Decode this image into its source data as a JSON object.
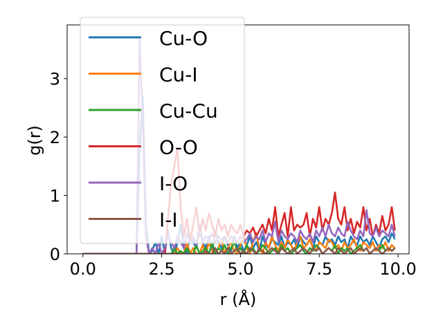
{
  "chart_data": {
    "type": "line",
    "title": "",
    "xlabel": "r (Å)",
    "ylabel": "g(r)",
    "xlim": [
      -0.5,
      10.35
    ],
    "ylim": [
      0,
      3.92
    ],
    "xticks": [
      0.0,
      2.5,
      5.0,
      7.5,
      10.0
    ],
    "xtick_labels": [
      "0.0",
      "2.5",
      "5.0",
      "7.5",
      "10.0"
    ],
    "yticks": [
      0,
      1,
      2,
      3
    ],
    "ytick_labels": [
      "0",
      "1",
      "2",
      "3"
    ],
    "grid": false,
    "legend_position": "upper-left",
    "x": [
      0.0,
      0.1,
      0.2,
      0.3,
      0.4,
      0.5,
      0.6,
      0.7,
      0.8,
      0.9,
      1.0,
      1.1,
      1.2,
      1.3,
      1.4,
      1.5,
      1.6,
      1.7,
      1.8,
      1.9,
      2.0,
      2.1,
      2.2,
      2.3,
      2.4,
      2.5,
      2.6,
      2.7,
      2.8,
      2.9,
      3.0,
      3.1,
      3.2,
      3.3,
      3.4,
      3.5,
      3.6,
      3.7,
      3.8,
      3.9,
      4.0,
      4.1,
      4.2,
      4.3,
      4.4,
      4.5,
      4.6,
      4.7,
      4.8,
      4.9,
      5.0,
      5.1,
      5.2,
      5.3,
      5.4,
      5.5,
      5.6,
      5.7,
      5.8,
      5.9,
      6.0,
      6.1,
      6.2,
      6.3,
      6.4,
      6.5,
      6.6,
      6.7,
      6.8,
      6.9,
      7.0,
      7.1,
      7.2,
      7.3,
      7.4,
      7.5,
      7.6,
      7.7,
      7.8,
      7.9,
      8.0,
      8.1,
      8.2,
      8.3,
      8.4,
      8.5,
      8.6,
      8.7,
      8.8,
      8.9,
      9.0,
      9.1,
      9.2,
      9.3,
      9.4,
      9.5,
      9.6,
      9.7,
      9.8,
      9.9
    ],
    "series": [
      {
        "name": "Cu-O",
        "color": "#1f77b4",
        "values": [
          0,
          0,
          0,
          0,
          0,
          0,
          0,
          0,
          0,
          0,
          0,
          0,
          0,
          0,
          0,
          0,
          0,
          0,
          1.8,
          2.7,
          0.5,
          0,
          0.05,
          0.2,
          0,
          0.3,
          0,
          0.4,
          0.1,
          0,
          0.2,
          0.5,
          0.1,
          0,
          0.35,
          0.2,
          0.1,
          0.5,
          0.2,
          0.1,
          0.3,
          0.05,
          0.4,
          0.2,
          0.1,
          0.3,
          0.15,
          0.05,
          0.3,
          0.1,
          0.2,
          0.05,
          0.15,
          0.3,
          0.1,
          0.2,
          0.05,
          0.3,
          0.15,
          0.1,
          0.25,
          0.2,
          0.15,
          0.3,
          0.1,
          0.2,
          0.15,
          0.25,
          0.1,
          0.3,
          0.2,
          0.15,
          0.25,
          0.1,
          0.3,
          0.2,
          0.15,
          0.3,
          0.2,
          0.25,
          0.15,
          0.3,
          0.2,
          0.25,
          0.1,
          0.3,
          0.2,
          0.15,
          0.3,
          0.2,
          0.25,
          0.15,
          0.3,
          0.2,
          0.1,
          0.25,
          0.3,
          0.2,
          0.35,
          0.25
        ]
      },
      {
        "name": "Cu-I",
        "color": "#ff7f0e",
        "values": [
          0,
          0,
          0,
          0,
          0,
          0,
          0,
          0,
          0,
          0,
          0,
          0,
          0,
          0,
          0,
          0,
          0,
          0,
          0,
          0,
          0,
          0,
          0,
          0,
          0,
          0,
          0,
          0,
          0,
          0,
          0.1,
          0,
          0,
          0.2,
          0,
          0.1,
          0,
          0,
          0.15,
          0,
          0.2,
          0.05,
          0,
          0.1,
          0.25,
          0,
          0.1,
          0.2,
          0.05,
          0,
          0.15,
          0.3,
          0.1,
          0,
          0.2,
          0.35,
          0.1,
          0,
          0.2,
          0.1,
          0.3,
          0.15,
          0.05,
          0.2,
          0.1,
          0.25,
          0.15,
          0.05,
          0.2,
          0.3,
          0.1,
          0.15,
          0.25,
          0.1,
          0.05,
          0.2,
          0.15,
          0.1,
          0.25,
          0.2,
          0.1,
          0.15,
          0.05,
          0.2,
          0.1,
          0.15,
          0.25,
          0.1,
          0.05,
          0.2,
          0.15,
          0.1,
          0.2,
          0.05,
          0.15,
          0.1,
          0.2,
          0.05,
          0.15,
          0.1
        ]
      },
      {
        "name": "Cu-Cu",
        "color": "#2ca02c",
        "values": [
          0,
          0,
          0,
          0,
          0,
          0,
          0,
          0,
          0,
          0,
          0,
          0,
          0,
          0,
          0,
          0,
          0,
          0,
          0,
          0,
          0,
          0,
          0,
          0,
          0,
          0,
          0,
          0,
          0,
          0.1,
          0,
          0.05,
          0,
          0.1,
          0,
          0,
          0.15,
          0,
          0.05,
          0.1,
          0,
          0.2,
          0,
          0.1,
          0.05,
          0.15,
          0,
          0.1,
          0.2,
          0.05,
          0.1,
          0,
          0.15,
          0.05,
          0.1,
          0,
          0.05,
          0.15,
          0.1,
          0,
          0.05,
          0.1,
          0,
          0.15,
          0.05,
          0.1,
          0,
          0.05,
          0.1,
          0.15,
          0.05,
          0,
          0.1,
          0.05,
          0.15,
          0.1,
          0,
          0.05,
          0.1,
          0.05,
          0.15,
          0,
          0.1,
          0.05,
          0.1,
          0,
          0.05,
          0.1,
          0.15,
          0.05,
          0.1,
          0,
          0.05,
          0.1,
          0.05,
          0.15,
          0.05,
          0.1,
          0.05,
          0.1
        ]
      },
      {
        "name": "O-O",
        "color": "#d62728",
        "values": [
          0,
          0,
          0,
          0,
          0,
          0,
          0,
          0,
          0,
          0,
          0,
          0,
          0,
          0,
          0,
          0,
          0,
          0,
          0,
          0,
          0,
          0,
          0,
          0,
          0,
          0,
          0,
          0.6,
          1.2,
          1.5,
          1.8,
          0.8,
          0.3,
          0.6,
          0.2,
          0.5,
          0.8,
          0.3,
          0.6,
          0.4,
          0.7,
          0.5,
          0.3,
          0.6,
          0.4,
          0.5,
          0.3,
          0.5,
          0.4,
          0.35,
          0.5,
          0.3,
          0.4,
          0.35,
          0.45,
          0.3,
          0.4,
          0.5,
          0.35,
          0.6,
          0.4,
          0.8,
          0.3,
          0.5,
          0.7,
          0.3,
          0.8,
          0.4,
          0.5,
          0.45,
          0.5,
          0.7,
          0.3,
          0.6,
          0.45,
          0.8,
          0.4,
          0.6,
          0.5,
          0.7,
          1.05,
          0.6,
          0.5,
          0.8,
          0.4,
          0.6,
          0.35,
          0.55,
          0.45,
          0.8,
          0.4,
          0.6,
          0.3,
          0.5,
          0.35,
          0.65,
          0.4,
          0.5,
          0.8,
          0.4
        ]
      },
      {
        "name": "I-O",
        "color": "#9467bd",
        "values": [
          0,
          0,
          0,
          0,
          0,
          0,
          0,
          0,
          0,
          0,
          0,
          0,
          0,
          0,
          0,
          0,
          0,
          0,
          3.7,
          2.2,
          0.3,
          0,
          0.1,
          0,
          0.2,
          0,
          0.1,
          0.3,
          0.2,
          0.1,
          0.3,
          0.2,
          0.1,
          0.35,
          0.2,
          0.3,
          0.15,
          0.4,
          0.2,
          0.3,
          0.25,
          0.35,
          0.2,
          0.3,
          0.25,
          0.3,
          0.2,
          0.3,
          0.25,
          0.2,
          0.3,
          0.2,
          0.25,
          0.35,
          0.2,
          0.3,
          0.25,
          0.4,
          0.2,
          0.35,
          0.3,
          0.55,
          0.2,
          0.4,
          0.3,
          0.25,
          0.35,
          0.3,
          0.2,
          0.4,
          0.3,
          0.25,
          0.35,
          0.2,
          0.4,
          0.3,
          0.45,
          0.3,
          0.5,
          0.35,
          0.3,
          0.45,
          0.35,
          0.3,
          0.55,
          0.4,
          0.3,
          0.25,
          0.4,
          0.3,
          0.75,
          0.35,
          0.3,
          0.45,
          0.3,
          0.4,
          0.35,
          0.3,
          0.5,
          0.3
        ]
      },
      {
        "name": "I-I",
        "color": "#8c564b",
        "values": [
          0,
          0,
          0,
          0,
          0,
          0,
          0,
          0,
          0,
          0,
          0,
          0,
          0,
          0,
          0,
          0,
          0,
          0,
          0,
          0,
          0,
          0,
          0,
          0,
          0,
          0,
          0,
          0,
          0,
          0,
          0,
          0,
          0,
          0,
          0,
          0,
          0,
          0,
          0,
          0.05,
          0,
          0,
          0.1,
          0,
          0.05,
          0,
          0.1,
          0,
          0.05,
          0.1,
          0,
          0.05,
          0,
          0.1,
          0.05,
          0,
          0.1,
          0.05,
          0,
          0.05,
          0.1,
          0.05,
          0,
          0.1,
          0.05,
          0,
          0.05,
          0.1,
          0,
          0.05,
          0.1,
          0.05,
          0,
          0.1,
          0.05,
          0.1,
          0,
          0.05,
          0.1,
          0.05,
          0,
          0.1,
          0.05,
          0,
          0.05,
          0.1,
          0,
          0.05,
          0.1,
          0.05,
          0.1,
          0,
          0.05,
          0.1,
          0.05,
          0,
          0.05,
          0.1,
          0.05,
          0.1
        ]
      }
    ]
  }
}
